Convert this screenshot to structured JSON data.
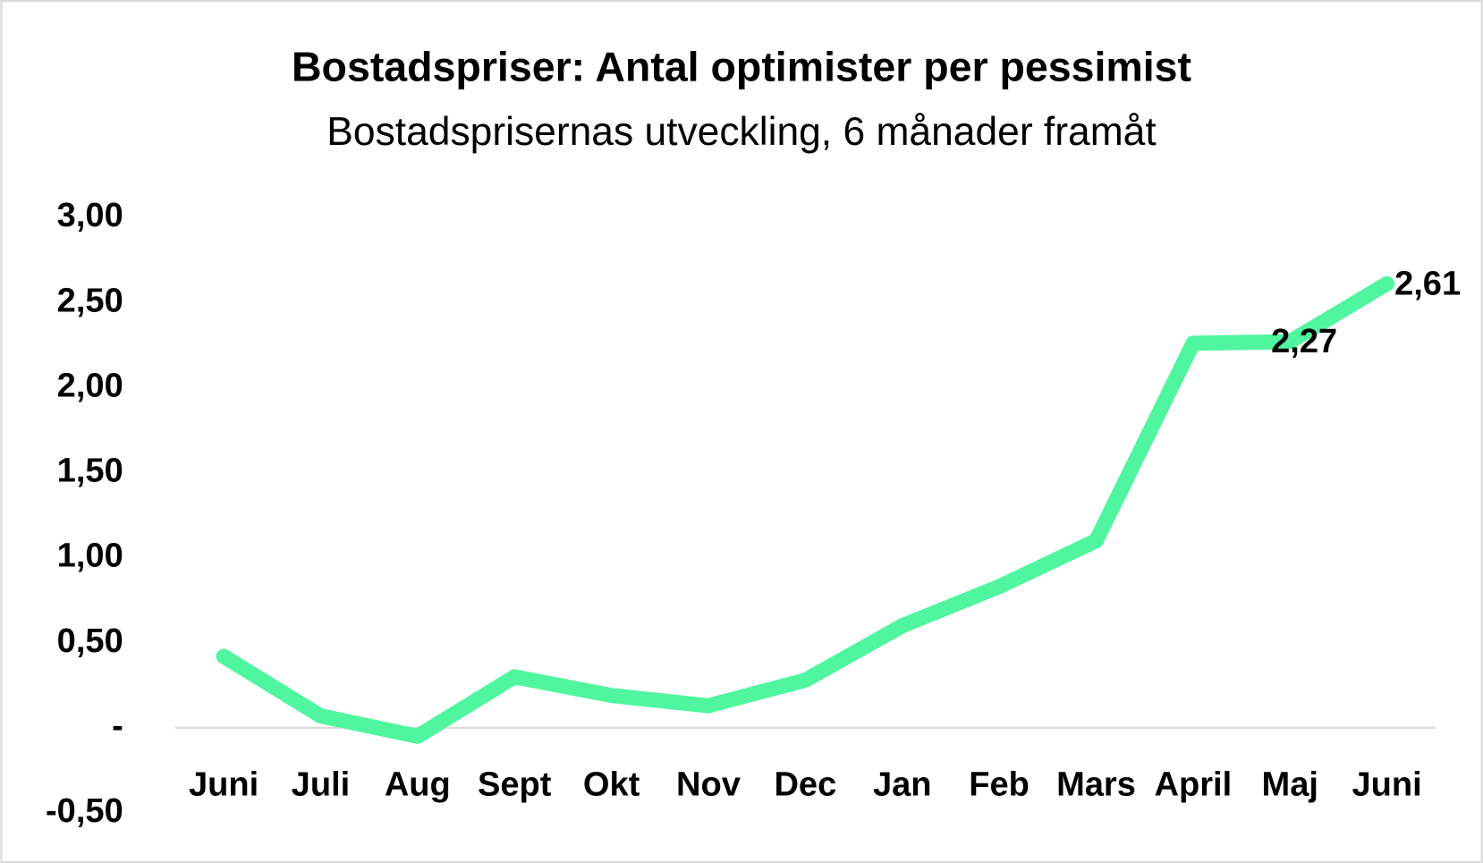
{
  "chart_data": {
    "type": "line",
    "title": "Bostadspriser: Antal optimister per pessimist",
    "subtitle": "Bostadsprisernas utveckling, 6 månader framåt",
    "categories": [
      "Juni",
      "Juli",
      "Aug",
      "Sept",
      "Okt",
      "Nov",
      "Dec",
      "Jan",
      "Feb",
      "Mars",
      "April",
      "Maj",
      "Juni"
    ],
    "values": [
      0.42,
      0.07,
      -0.05,
      0.3,
      0.19,
      0.13,
      0.28,
      0.6,
      0.83,
      1.1,
      2.26,
      2.27,
      2.61
    ],
    "value_labels": [
      null,
      null,
      null,
      null,
      null,
      null,
      null,
      null,
      null,
      null,
      null,
      "2,27",
      "2,61"
    ],
    "color": "#50f5a0",
    "ylim": [
      -0.5,
      3
    ],
    "yticks": [
      {
        "value": -0.5,
        "label": "-0,50"
      },
      {
        "value": 0,
        "label": "-"
      },
      {
        "value": 0.5,
        "label": "0,50"
      },
      {
        "value": 1,
        "label": "1,00"
      },
      {
        "value": 1.5,
        "label": "1,50"
      },
      {
        "value": 2,
        "label": "2,00"
      },
      {
        "value": 2.5,
        "label": "2,50"
      },
      {
        "value": 3,
        "label": "3,00"
      }
    ],
    "grid": false
  }
}
